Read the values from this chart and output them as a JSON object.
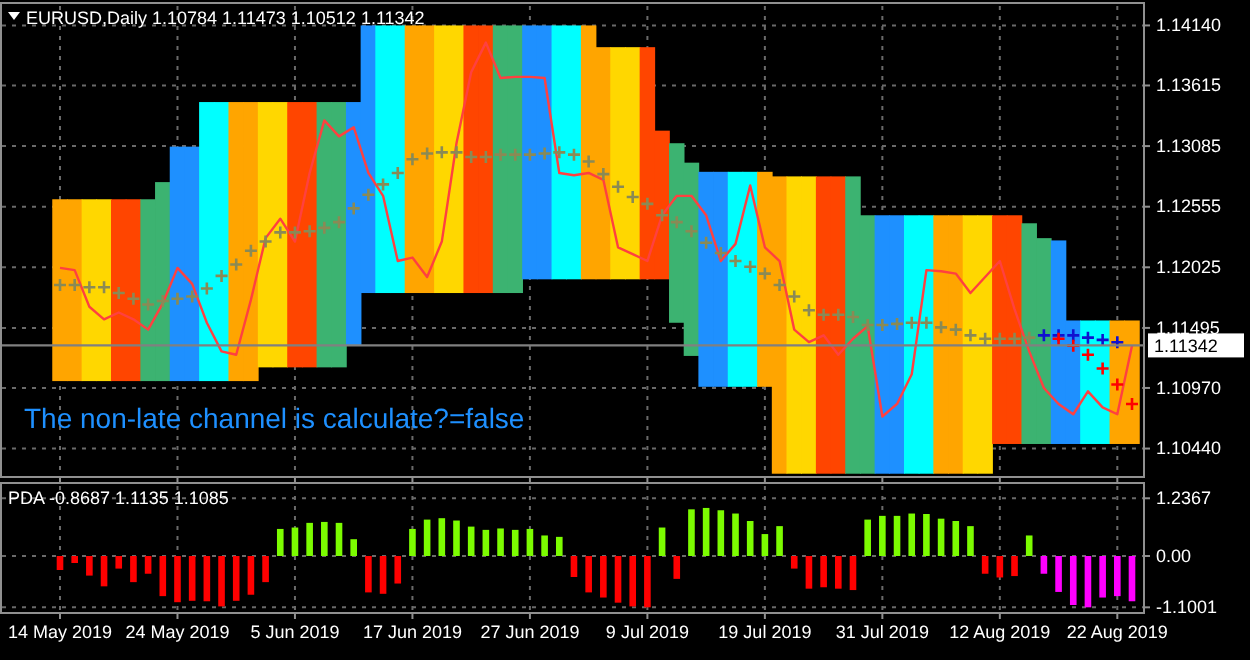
{
  "chart_data": [
    {
      "type": "bar",
      "title": "EURUSD,Daily  1.10784 1.11473 1.10512 1.11342",
      "annotations": [
        "The non-late channel is calculate?=false"
      ],
      "categories": [
        null,
        null,
        null,
        null,
        null,
        null,
        null,
        null,
        null,
        null,
        null,
        null,
        null,
        null,
        null,
        null,
        null,
        null,
        null,
        null,
        null,
        null,
        null,
        null,
        null,
        null,
        null,
        null,
        null,
        null,
        null,
        null,
        null,
        null,
        null,
        null,
        null,
        null,
        null,
        null,
        null,
        null,
        null,
        null,
        null,
        null,
        null,
        null,
        null,
        null,
        null,
        null,
        null,
        null,
        null,
        null,
        null,
        null,
        null,
        null,
        null,
        null,
        null,
        null,
        null,
        null,
        null,
        null,
        null,
        null,
        null,
        null,
        null,
        null
      ],
      "base": [
        1.1103,
        1.1103,
        1.1103,
        1.1103,
        1.1103,
        1.1103,
        1.1103,
        1.1103,
        1.1103,
        1.1103,
        1.1103,
        1.1103,
        1.1103,
        1.1103,
        1.1115,
        1.1115,
        1.1115,
        1.1115,
        1.1115,
        1.1115,
        1.1134,
        1.118,
        1.118,
        1.118,
        1.118,
        1.118,
        1.118,
        1.118,
        1.118,
        1.118,
        1.118,
        1.118,
        1.1192,
        1.1192,
        1.1192,
        1.1192,
        1.1192,
        1.1192,
        1.1192,
        1.1192,
        1.1192,
        1.1192,
        1.1154,
        1.1125,
        1.1098,
        1.1098,
        1.1098,
        1.1098,
        1.1098,
        1.1022,
        1.1022,
        1.1022,
        1.1022,
        1.1022,
        1.1022,
        1.1022,
        1.1022,
        1.1022,
        1.1022,
        1.1022,
        1.1022,
        1.1022,
        1.1022,
        1.1022,
        1.1048,
        1.1048,
        1.1048,
        1.1048,
        1.1048,
        1.1048,
        1.1048,
        1.1048,
        1.1048,
        1.1048
      ],
      "values": [
        0.0159,
        0.0159,
        0.0159,
        0.0159,
        0.0159,
        0.0159,
        0.0159,
        0.0174,
        0.0205,
        0.0205,
        0.0244,
        0.0244,
        0.0244,
        0.0244,
        0.0232,
        0.0232,
        0.0232,
        0.0232,
        0.0232,
        0.0232,
        0.0213,
        0.0234,
        0.0234,
        0.0234,
        0.0234,
        0.0234,
        0.0234,
        0.0234,
        0.0234,
        0.0234,
        0.0234,
        0.0234,
        0.0222,
        0.0222,
        0.0222,
        0.0222,
        0.0222,
        0.0203,
        0.0203,
        0.0203,
        0.0203,
        0.013,
        0.0157,
        0.0169,
        0.0188,
        0.0188,
        0.0188,
        0.0188,
        0.0188,
        0.026,
        0.026,
        0.026,
        0.026,
        0.026,
        0.026,
        0.0226,
        0.0226,
        0.0226,
        0.0226,
        0.0226,
        0.0226,
        0.0226,
        0.0226,
        0.0226,
        0.02,
        0.02,
        0.0193,
        0.018,
        0.0178,
        0.0108,
        0.0108,
        0.0108,
        0.0108,
        0.0108
      ],
      "colors": [
        "#ffa500",
        "#ffa500",
        "#ffd700",
        "#ffd700",
        "#ff4500",
        "#ff4500",
        "#3cb371",
        "#3cb371",
        "#1e90ff",
        "#1e90ff",
        "#00ffff",
        "#00ffff",
        "#ffa500",
        "#ffa500",
        "#ffd700",
        "#ffd700",
        "#ff4500",
        "#ff4500",
        "#3cb371",
        "#3cb371",
        "#1e90ff",
        "#1e90ff",
        "#00ffff",
        "#00ffff",
        "#ffa500",
        "#ffa500",
        "#ffd700",
        "#ffd700",
        "#ff4500",
        "#ff4500",
        "#3cb371",
        "#3cb371",
        "#1e90ff",
        "#1e90ff",
        "#00ffff",
        "#00ffff",
        "#ffa500",
        "#ffa500",
        "#ffd700",
        "#ffd700",
        "#ff4500",
        "#ff4500",
        "#3cb371",
        "#3cb371",
        "#1e90ff",
        "#1e90ff",
        "#00ffff",
        "#00ffff",
        "#ffa500",
        "#ffa500",
        "#ffd700",
        "#ffd700",
        "#ff4500",
        "#ff4500",
        "#3cb371",
        "#3cb371",
        "#1e90ff",
        "#1e90ff",
        "#00ffff",
        "#00ffff",
        "#ffa500",
        "#ffa500",
        "#ffd700",
        "#ffd700",
        "#ff4500",
        "#ff4500",
        "#3cb371",
        "#3cb371",
        "#1e90ff",
        "#1e90ff",
        "#00ffff",
        "#00ffff",
        "#ffa500",
        "#ffa500"
      ],
      "ylim": [
        1.102,
        1.1431
      ],
      "yticks": [
        {
          "value": 1.1414,
          "label": "1.14140"
        },
        {
          "value": 1.13615,
          "label": "1.13615"
        },
        {
          "value": 1.13085,
          "label": "1.13085"
        },
        {
          "value": 1.12555,
          "label": "1.12555"
        },
        {
          "value": 1.12025,
          "label": "1.12025"
        },
        {
          "value": 1.11495,
          "label": "1.11495"
        },
        {
          "value": 1.1097,
          "label": "1.10970"
        },
        {
          "value": 1.1044,
          "label": "1.10440"
        }
      ],
      "grid": true,
      "tick_labels": "y"
    },
    {
      "type": "line",
      "categories": [
        null,
        null,
        null,
        null,
        null,
        null,
        null,
        null,
        null,
        null,
        null,
        null,
        null,
        null,
        null,
        null,
        null,
        null,
        null,
        null,
        null,
        null,
        null,
        null,
        null,
        null,
        null,
        null,
        null,
        null,
        null,
        null,
        null,
        null,
        null,
        null,
        null,
        null,
        null,
        null,
        null,
        null,
        null,
        null,
        null,
        null,
        null,
        null,
        null,
        null,
        null,
        null,
        null,
        null,
        null,
        null,
        null,
        null,
        null,
        null,
        null,
        null,
        null,
        null,
        null,
        null,
        null,
        null,
        null,
        null,
        null,
        null,
        null,
        null
      ],
      "series": [
        {
          "color": "#ff4040",
          "values": [
            1.1202,
            1.12,
            1.1168,
            1.1157,
            1.1163,
            1.1157,
            1.1148,
            1.1171,
            1.1202,
            1.1188,
            1.1154,
            1.1129,
            1.1126,
            1.1174,
            1.1228,
            1.1245,
            1.1225,
            1.1285,
            1.1331,
            1.1317,
            1.1325,
            1.1285,
            1.1265,
            1.1208,
            1.1211,
            1.1194,
            1.1225,
            1.1311,
            1.1373,
            1.1399,
            1.1368,
            1.1369,
            1.1369,
            1.1368,
            1.1285,
            1.1283,
            1.1285,
            1.1279,
            1.122,
            1.1214,
            1.1208,
            1.1248,
            1.1265,
            1.1265,
            1.1248,
            1.1208,
            1.1223,
            1.1274,
            1.122,
            1.1208,
            1.1148,
            1.1137,
            1.1143,
            1.1126,
            1.114,
            1.1151,
            1.1072,
            1.1083,
            1.1109,
            1.12,
            1.1199,
            1.1197,
            1.118,
            1.1194,
            1.1208,
            1.1166,
            1.1129,
            1.1097,
            1.1083,
            1.1074,
            1.1094,
            1.108,
            1.1074,
            1.1134
          ]
        },
        {
          "type": "scatter",
          "marker": "cross",
          "color": "#8a8a55",
          "values": [
            1.1187,
            1.1187,
            1.1185,
            1.1185,
            1.118,
            1.1175,
            1.117,
            1.1173,
            1.1175,
            1.1177,
            1.1184,
            1.1195,
            1.1205,
            1.1217,
            1.1225,
            1.1233,
            1.1233,
            1.1234,
            1.1237,
            1.1242,
            1.1254,
            1.1266,
            1.1275,
            1.1285,
            1.1297,
            1.1302,
            1.1303,
            1.1303,
            1.1299,
            1.1299,
            1.1301,
            1.1301,
            1.1301,
            1.1302,
            1.1303,
            1.1301,
            1.1295,
            1.1284,
            1.1273,
            1.1264,
            1.1258,
            1.1248,
            1.1242,
            1.1234,
            1.1224,
            1.1215,
            1.1208,
            1.1203,
            1.1197,
            1.1187,
            1.1177,
            1.1165,
            1.1161,
            1.1161,
            1.1159,
            1.1152,
            1.1152,
            1.1153,
            1.1154,
            1.1154,
            1.115,
            1.1148,
            1.1143,
            1.114,
            1.114,
            1.114,
            1.1141,
            null,
            null,
            null,
            null,
            null,
            null,
            null
          ]
        },
        {
          "type": "scatter",
          "marker": "cross",
          "color": "#1010d0",
          "values": [
            null,
            null,
            null,
            null,
            null,
            null,
            null,
            null,
            null,
            null,
            null,
            null,
            null,
            null,
            null,
            null,
            null,
            null,
            null,
            null,
            null,
            null,
            null,
            null,
            null,
            null,
            null,
            null,
            null,
            null,
            null,
            null,
            null,
            null,
            null,
            null,
            null,
            null,
            null,
            null,
            null,
            null,
            null,
            null,
            null,
            null,
            null,
            null,
            null,
            null,
            null,
            null,
            null,
            null,
            null,
            null,
            null,
            null,
            null,
            null,
            null,
            null,
            null,
            null,
            null,
            null,
            null,
            1.1143,
            1.1143,
            1.1143,
            1.1141,
            1.1139,
            1.1137,
            null
          ]
        },
        {
          "type": "scatter",
          "marker": "cross",
          "color": "#ff0000",
          "values": [
            null,
            null,
            null,
            null,
            null,
            null,
            null,
            null,
            null,
            null,
            null,
            null,
            null,
            null,
            null,
            null,
            null,
            null,
            null,
            null,
            null,
            null,
            null,
            null,
            null,
            null,
            null,
            null,
            null,
            null,
            null,
            null,
            null,
            null,
            null,
            null,
            null,
            null,
            null,
            null,
            null,
            null,
            null,
            null,
            null,
            null,
            null,
            null,
            null,
            null,
            null,
            null,
            null,
            null,
            null,
            null,
            null,
            null,
            null,
            null,
            null,
            null,
            null,
            null,
            null,
            null,
            null,
            null,
            1.114,
            1.1134,
            1.1126,
            1.1114,
            1.11,
            1.1083
          ]
        }
      ],
      "ylim": [
        1.102,
        1.1431
      ],
      "ref_lines": [
        {
          "axis": "y",
          "value": 1.11342,
          "label": "1.11342",
          "color": "#808080"
        }
      ],
      "tick_labels": false
    },
    {
      "type": "bar",
      "title": "PDA -0.8687 1.1135 1.1085",
      "categories": [
        "14 May 2019",
        null,
        null,
        null,
        null,
        null,
        null,
        null,
        "24 May 2019",
        null,
        null,
        null,
        null,
        null,
        null,
        null,
        "5 Jun 2019",
        null,
        null,
        null,
        null,
        null,
        null,
        null,
        "17 Jun 2019",
        null,
        null,
        null,
        null,
        null,
        null,
        null,
        "27 Jun 2019",
        null,
        null,
        null,
        null,
        null,
        null,
        null,
        "9 Jul 2019",
        null,
        null,
        null,
        null,
        null,
        null,
        null,
        "19 Jul 2019",
        null,
        null,
        null,
        null,
        null,
        null,
        null,
        "31 Jul 2019",
        null,
        null,
        null,
        null,
        null,
        null,
        null,
        "12 Aug 2019",
        null,
        null,
        null,
        null,
        null,
        null,
        null,
        "22 Aug 2019",
        null
      ],
      "values": [
        -0.3,
        -0.15,
        -0.42,
        -0.65,
        -0.27,
        -0.56,
        -0.38,
        -0.86,
        -0.99,
        -0.96,
        -0.97,
        -1.08,
        -0.96,
        -0.83,
        -0.56,
        0.58,
        0.61,
        0.71,
        0.73,
        0.71,
        0.36,
        -0.78,
        -0.81,
        -0.59,
        0.58,
        0.78,
        0.81,
        0.76,
        0.63,
        0.56,
        0.59,
        0.56,
        0.58,
        0.44,
        0.41,
        -0.45,
        -0.78,
        -0.89,
        -1.0,
        -1.08,
        -1.1,
        0.61,
        -0.49,
        1.0,
        1.03,
        0.98,
        0.91,
        0.75,
        0.47,
        0.64,
        -0.27,
        -0.7,
        -0.67,
        -0.7,
        -0.73,
        0.78,
        0.86,
        0.86,
        0.91,
        0.9,
        0.8,
        0.75,
        0.64,
        -0.38,
        -0.46,
        -0.43,
        0.44,
        -0.38,
        -0.77,
        -1.05,
        -1.1,
        -0.89,
        -0.86,
        -0.97
      ],
      "colors": [
        "#ff0000",
        "#ff0000",
        "#ff0000",
        "#ff0000",
        "#ff0000",
        "#ff0000",
        "#ff0000",
        "#ff0000",
        "#ff0000",
        "#ff0000",
        "#ff0000",
        "#ff0000",
        "#ff0000",
        "#ff0000",
        "#ff0000",
        "#7cfc00",
        "#7cfc00",
        "#7cfc00",
        "#7cfc00",
        "#7cfc00",
        "#7cfc00",
        "#ff0000",
        "#ff0000",
        "#ff0000",
        "#7cfc00",
        "#7cfc00",
        "#7cfc00",
        "#7cfc00",
        "#7cfc00",
        "#7cfc00",
        "#7cfc00",
        "#7cfc00",
        "#7cfc00",
        "#7cfc00",
        "#7cfc00",
        "#ff0000",
        "#ff0000",
        "#ff0000",
        "#ff0000",
        "#ff0000",
        "#ff0000",
        "#7cfc00",
        "#ff0000",
        "#7cfc00",
        "#7cfc00",
        "#7cfc00",
        "#7cfc00",
        "#7cfc00",
        "#7cfc00",
        "#7cfc00",
        "#ff0000",
        "#ff0000",
        "#ff0000",
        "#ff0000",
        "#ff0000",
        "#7cfc00",
        "#7cfc00",
        "#7cfc00",
        "#7cfc00",
        "#7cfc00",
        "#7cfc00",
        "#7cfc00",
        "#7cfc00",
        "#ff0000",
        "#ff0000",
        "#ff0000",
        "#7cfc00",
        "#ff00ff",
        "#ff00ff",
        "#ff00ff",
        "#ff00ff",
        "#ff00ff",
        "#ff00ff",
        "#ff00ff"
      ],
      "ylim": [
        -1.2,
        1.5
      ],
      "yticks": [
        1.2367,
        {
          "value": 0,
          "label": "0.00"
        },
        -1.1001
      ],
      "grid": true
    }
  ]
}
